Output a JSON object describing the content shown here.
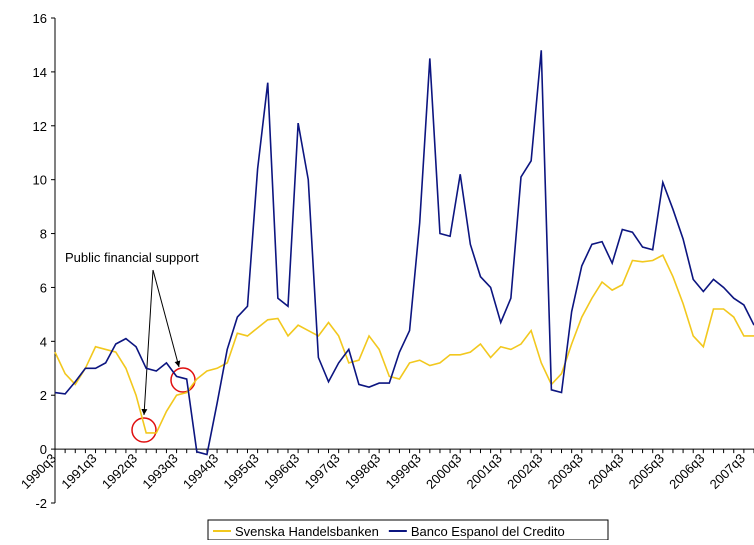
{
  "chart_data": {
    "type": "line",
    "annotation": "Public financial support",
    "categories": [
      "1990q3",
      null,
      null,
      null,
      "1991q3",
      null,
      null,
      null,
      "1992q3",
      null,
      null,
      null,
      "1993q3",
      null,
      null,
      null,
      "1994q3",
      null,
      null,
      null,
      "1995q3",
      null,
      null,
      null,
      "1996q3",
      null,
      null,
      null,
      "1997q3",
      null,
      null,
      null,
      "1998q3",
      null,
      null,
      null,
      "1999q3",
      null,
      null,
      null,
      "2000q3",
      null,
      null,
      null,
      "2001q3",
      null,
      null,
      null,
      "2002q3",
      null,
      null,
      null,
      "2003q3",
      null,
      null,
      null,
      "2004q3",
      null,
      null,
      null,
      "2005q3",
      null,
      null,
      null,
      "2006q3",
      null,
      null,
      null,
      "2007q3",
      null
    ],
    "series": [
      {
        "name": "Svenska Handelsbanken",
        "color": "#f2c81e",
        "values": [
          3.6,
          2.8,
          2.4,
          3.0,
          3.8,
          3.7,
          3.6,
          3.0,
          2.0,
          0.6,
          0.6,
          1.4,
          2.0,
          2.1,
          2.6,
          2.9,
          3.0,
          3.2,
          4.3,
          4.2,
          4.5,
          4.8,
          4.85,
          4.2,
          4.6,
          4.4,
          4.2,
          4.7,
          4.2,
          3.2,
          3.3,
          4.2,
          3.7,
          2.7,
          2.6,
          3.2,
          3.3,
          3.1,
          3.2,
          3.5,
          3.5,
          3.6,
          3.9,
          3.4,
          3.8,
          3.7,
          3.9,
          4.4,
          3.2,
          2.4,
          2.8,
          3.9,
          4.9,
          5.6,
          6.2,
          5.9,
          6.1,
          7.0,
          6.95,
          7.0,
          7.2,
          6.4,
          5.4,
          4.2,
          3.8,
          5.2,
          5.2,
          4.9,
          4.2,
          4.2
        ]
      },
      {
        "name": "Banco Espanol del Credito",
        "color": "#0c1580",
        "values": [
          2.1,
          2.05,
          2.5,
          3.0,
          3.0,
          3.2,
          3.9,
          4.1,
          3.8,
          3.0,
          2.9,
          3.2,
          2.7,
          2.6,
          -0.1,
          -0.2,
          1.7,
          3.7,
          4.9,
          5.3,
          10.4,
          13.6,
          5.6,
          5.3,
          12.1,
          10.0,
          3.4,
          2.5,
          3.2,
          3.7,
          2.4,
          2.3,
          2.45,
          2.45,
          3.6,
          4.4,
          8.4,
          14.5,
          8.0,
          7.9,
          10.2,
          7.6,
          6.4,
          6.0,
          4.7,
          5.6,
          10.1,
          10.7,
          14.8,
          2.2,
          2.1,
          5.1,
          6.8,
          7.6,
          7.7,
          6.9,
          8.15,
          8.05,
          7.5,
          7.4,
          9.9,
          8.9,
          7.8,
          6.3,
          5.85,
          6.3,
          6.0,
          5.6,
          5.35,
          4.6
        ]
      }
    ],
    "ylim": [
      -2,
      16
    ],
    "yticks": [
      -2,
      0,
      2,
      4,
      6,
      8,
      10,
      12,
      14,
      16
    ],
    "legend": "bottom"
  }
}
